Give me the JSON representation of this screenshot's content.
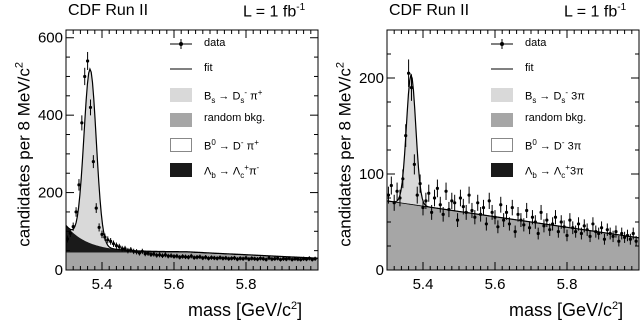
{
  "chart_data": [
    {
      "type": "line",
      "experiment_label": "CDF Run II",
      "luminosity_label": "L = 1 fb",
      "luminosity_unit_sup": "-1",
      "ylabel": "candidates per 8 MeV/c",
      "ylabel_sup": "2",
      "xlabel": "mass [GeV/c",
      "xlabel_sup": "2",
      "xlabel_close": "]",
      "xlim": [
        5.3,
        6.0
      ],
      "ylim": [
        0,
        620
      ],
      "xticks": [
        5.4,
        5.6,
        5.8
      ],
      "xtick_labels": [
        "5.4",
        "5.6",
        "5.8"
      ],
      "yticks": [
        0,
        200,
        400,
        600
      ],
      "ytick_labels": [
        "0",
        "200",
        "400",
        "600"
      ],
      "legend_position": "top-right",
      "legend": [
        {
          "kind": "data",
          "label": "data"
        },
        {
          "kind": "fit",
          "label": "fit"
        },
        {
          "kind": "signal",
          "label_html": "B<sub>s</sub> → D<sub>s</sub><sup>-</sup> π<sup>+</sup>"
        },
        {
          "kind": "random",
          "label": "random bkg."
        },
        {
          "kind": "b0",
          "label_html": "B<sup>0</sup> → D<sup>-</sup> π<sup>+</sup>"
        },
        {
          "kind": "lambda",
          "label_html": "Λ<sub>b</sub> → Λ<sub>c</sub><sup>+</sup>π<sup>-</sup>"
        }
      ],
      "colors": {
        "signal": "#d9d9d9",
        "random": "#a6a6a6",
        "b0": "#ffffff",
        "lambda": "#1a1a1a"
      },
      "peak": {
        "mean": 5.367,
        "sigma": 0.017,
        "amplitude": 450
      },
      "series": [
        {
          "name": "data",
          "x": [
            5.304,
            5.312,
            5.32,
            5.328,
            5.336,
            5.344,
            5.352,
            5.36,
            5.368,
            5.376,
            5.384,
            5.392,
            5.4,
            5.408,
            5.416,
            5.424,
            5.432,
            5.44,
            5.448,
            5.456,
            5.464,
            5.472,
            5.48,
            5.488,
            5.496,
            5.504,
            5.512,
            5.52,
            5.528,
            5.536,
            5.544,
            5.552,
            5.56,
            5.568,
            5.576,
            5.584,
            5.592,
            5.6,
            5.608,
            5.616,
            5.624,
            5.632,
            5.64,
            5.648,
            5.656,
            5.664,
            5.672,
            5.68,
            5.688,
            5.696,
            5.704,
            5.712,
            5.72,
            5.728,
            5.736,
            5.744,
            5.752,
            5.76,
            5.768,
            5.776,
            5.784,
            5.792,
            5.8,
            5.808,
            5.816,
            5.824,
            5.832,
            5.84,
            5.848,
            5.856,
            5.864,
            5.872,
            5.88,
            5.888,
            5.896,
            5.904,
            5.912,
            5.92,
            5.928,
            5.936,
            5.944,
            5.952,
            5.96,
            5.968,
            5.976,
            5.984,
            5.992
          ],
          "y": [
            80,
            95,
            112,
            150,
            220,
            380,
            500,
            540,
            420,
            280,
            160,
            110,
            92,
            85,
            78,
            74,
            68,
            63,
            60,
            55,
            55,
            50,
            52,
            48,
            47,
            44,
            48,
            42,
            43,
            40,
            41,
            38,
            39,
            37,
            39,
            36,
            37,
            35,
            36,
            33,
            35,
            34,
            33,
            36,
            32,
            33,
            34,
            31,
            33,
            30,
            32,
            31,
            30,
            32,
            30,
            31,
            29,
            30,
            31,
            28,
            30,
            29,
            31,
            28,
            30,
            29,
            28,
            30,
            29,
            27,
            31,
            28,
            29,
            30,
            27,
            29,
            28,
            30,
            27,
            29,
            28,
            27,
            29,
            28,
            30,
            27,
            29
          ]
        }
      ]
    },
    {
      "type": "line",
      "experiment_label": "CDF Run II",
      "luminosity_label": "L = 1 fb",
      "luminosity_unit_sup": "-1",
      "ylabel": "candidates per 8 MeV/c",
      "ylabel_sup": "2",
      "xlabel": "mass [GeV/c",
      "xlabel_sup": "2",
      "xlabel_close": "]",
      "xlim": [
        5.3,
        6.0
      ],
      "ylim": [
        0,
        250
      ],
      "xticks": [
        5.4,
        5.6,
        5.8
      ],
      "xtick_labels": [
        "5.4",
        "5.6",
        "5.8"
      ],
      "yticks": [
        0,
        100,
        200
      ],
      "ytick_labels": [
        "0",
        "100",
        "200"
      ],
      "legend_position": "top-right",
      "legend": [
        {
          "kind": "data",
          "label": "data"
        },
        {
          "kind": "fit",
          "label": "fit"
        },
        {
          "kind": "signal",
          "label_html": "B<sub>s</sub> → D<sub>s</sub><sup>-</sup> 3π"
        },
        {
          "kind": "random",
          "label": "random bkg."
        },
        {
          "kind": "b0",
          "label_html": "B<sup>0</sup> → D<sup>-</sup> 3π"
        },
        {
          "kind": "lambda",
          "label_html": "Λ<sub>b</sub> → Λ<sub>c</sub><sup>+</sup>3π"
        }
      ],
      "colors": {
        "signal": "#d9d9d9",
        "random": "#a6a6a6",
        "b0": "#ffffff",
        "lambda": "#1a1a1a"
      },
      "peak": {
        "mean": 5.367,
        "sigma": 0.013,
        "amplitude": 135
      },
      "series": [
        {
          "name": "data",
          "x": [
            5.304,
            5.312,
            5.32,
            5.328,
            5.336,
            5.344,
            5.352,
            5.36,
            5.368,
            5.376,
            5.384,
            5.392,
            5.4,
            5.408,
            5.416,
            5.424,
            5.432,
            5.44,
            5.448,
            5.456,
            5.464,
            5.472,
            5.48,
            5.488,
            5.496,
            5.504,
            5.512,
            5.52,
            5.528,
            5.536,
            5.544,
            5.552,
            5.56,
            5.568,
            5.576,
            5.584,
            5.592,
            5.6,
            5.608,
            5.616,
            5.624,
            5.632,
            5.64,
            5.648,
            5.656,
            5.664,
            5.672,
            5.68,
            5.688,
            5.696,
            5.704,
            5.712,
            5.72,
            5.728,
            5.736,
            5.744,
            5.752,
            5.76,
            5.768,
            5.776,
            5.784,
            5.792,
            5.8,
            5.808,
            5.816,
            5.824,
            5.832,
            5.84,
            5.848,
            5.856,
            5.864,
            5.872,
            5.88,
            5.888,
            5.896,
            5.904,
            5.912,
            5.92,
            5.928,
            5.936,
            5.944,
            5.952,
            5.96,
            5.968,
            5.976,
            5.984,
            5.992
          ],
          "y": [
            78,
            88,
            70,
            82,
            75,
            95,
            140,
            205,
            190,
            110,
            78,
            90,
            65,
            72,
            80,
            60,
            75,
            85,
            68,
            58,
            82,
            63,
            72,
            70,
            52,
            75,
            66,
            60,
            78,
            62,
            55,
            70,
            58,
            65,
            48,
            72,
            60,
            55,
            45,
            68,
            52,
            60,
            48,
            65,
            40,
            58,
            52,
            47,
            62,
            44,
            55,
            50,
            38,
            60,
            46,
            52,
            42,
            48,
            55,
            40,
            50,
            45,
            36,
            52,
            44,
            40,
            48,
            38,
            46,
            42,
            35,
            48,
            40,
            38,
            44,
            32,
            42,
            38,
            35,
            40,
            30,
            38,
            34,
            36,
            32,
            38,
            30
          ]
        }
      ]
    }
  ]
}
